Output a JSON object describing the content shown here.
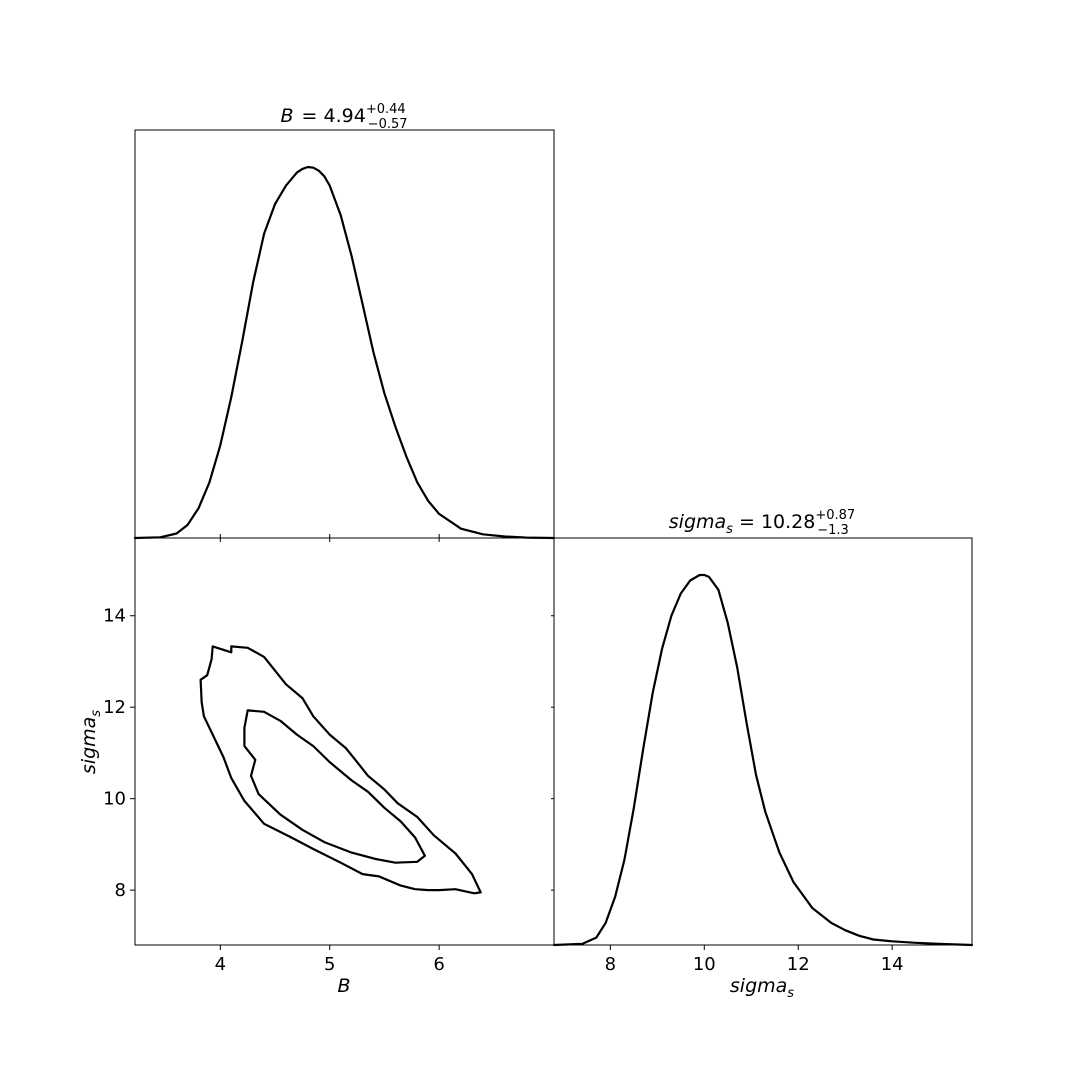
{
  "chart_data": [
    {
      "panel": "B-marginal",
      "type": "line",
      "title": {
        "param": "B",
        "value": "4.94",
        "plus": "+0.44",
        "minus": "−0.57"
      },
      "xlim": [
        3.22,
        7.05
      ],
      "x": [
        3.22,
        3.45,
        3.6,
        3.7,
        3.8,
        3.9,
        4.0,
        4.1,
        4.2,
        4.3,
        4.4,
        4.5,
        4.6,
        4.7,
        4.75,
        4.8,
        4.85,
        4.9,
        4.95,
        5.0,
        5.1,
        5.2,
        5.3,
        5.4,
        5.5,
        5.6,
        5.7,
        5.8,
        5.9,
        6.0,
        6.2,
        6.4,
        6.6,
        6.8,
        7.05
      ],
      "y": [
        0.0,
        0.002,
        0.012,
        0.035,
        0.08,
        0.15,
        0.25,
        0.38,
        0.53,
        0.69,
        0.82,
        0.9,
        0.95,
        0.985,
        0.995,
        1.0,
        0.998,
        0.99,
        0.975,
        0.95,
        0.87,
        0.76,
        0.63,
        0.5,
        0.39,
        0.3,
        0.22,
        0.15,
        0.1,
        0.065,
        0.025,
        0.01,
        0.004,
        0.001,
        0.0
      ]
    },
    {
      "panel": "sigma-marginal",
      "type": "line",
      "title": {
        "param": "sigma",
        "sub": "s",
        "value": "10.28",
        "plus": "+0.87",
        "minus": "−1.3"
      },
      "xlabel": {
        "main": "sigma",
        "sub": "s"
      },
      "xlim": [
        6.8,
        15.7
      ],
      "xticks": [
        8,
        10,
        12,
        14
      ],
      "x": [
        6.8,
        7.4,
        7.7,
        7.9,
        8.1,
        8.3,
        8.5,
        8.7,
        8.9,
        9.1,
        9.3,
        9.5,
        9.7,
        9.9,
        10.0,
        10.1,
        10.3,
        10.5,
        10.7,
        10.9,
        11.1,
        11.3,
        11.6,
        11.9,
        12.3,
        12.7,
        13.0,
        13.3,
        13.6,
        14.0,
        14.5,
        15.0,
        15.7
      ],
      "y": [
        0.0,
        0.003,
        0.02,
        0.06,
        0.13,
        0.23,
        0.37,
        0.53,
        0.68,
        0.8,
        0.89,
        0.95,
        0.985,
        1.0,
        1.0,
        0.995,
        0.96,
        0.87,
        0.75,
        0.6,
        0.46,
        0.36,
        0.25,
        0.17,
        0.1,
        0.06,
        0.04,
        0.025,
        0.015,
        0.01,
        0.006,
        0.003,
        0.0
      ]
    },
    {
      "panel": "joint",
      "type": "contour",
      "xlabel": {
        "main": "B"
      },
      "ylabel": {
        "main": "sigma",
        "sub": "s"
      },
      "xlim": [
        3.22,
        7.05
      ],
      "ylim": [
        6.8,
        15.7
      ],
      "xticks": [
        4,
        5,
        6
      ],
      "yticks": [
        8,
        10,
        12,
        14
      ],
      "contours": [
        {
          "level": "outer",
          "points": [
            [
              3.93,
              13.33
            ],
            [
              4.1,
              13.2
            ],
            [
              4.1,
              13.33
            ],
            [
              4.25,
              13.3
            ],
            [
              4.4,
              13.1
            ],
            [
              4.5,
              12.8
            ],
            [
              4.6,
              12.5
            ],
            [
              4.75,
              12.2
            ],
            [
              4.85,
              11.8
            ],
            [
              5.0,
              11.4
            ],
            [
              5.15,
              11.1
            ],
            [
              5.25,
              10.8
            ],
            [
              5.35,
              10.5
            ],
            [
              5.5,
              10.2
            ],
            [
              5.62,
              9.9
            ],
            [
              5.8,
              9.6
            ],
            [
              5.95,
              9.2
            ],
            [
              6.15,
              8.8
            ],
            [
              6.3,
              8.35
            ],
            [
              6.38,
              7.95
            ],
            [
              6.32,
              7.93
            ],
            [
              6.15,
              8.02
            ],
            [
              6.0,
              8.0
            ],
            [
              5.9,
              8.0
            ],
            [
              5.78,
              8.02
            ],
            [
              5.65,
              8.1
            ],
            [
              5.45,
              8.3
            ],
            [
              5.3,
              8.35
            ],
            [
              5.1,
              8.6
            ],
            [
              4.85,
              8.9
            ],
            [
              4.65,
              9.15
            ],
            [
              4.4,
              9.45
            ],
            [
              4.22,
              9.95
            ],
            [
              4.1,
              10.45
            ],
            [
              4.03,
              10.9
            ],
            [
              3.93,
              11.4
            ],
            [
              3.85,
              11.8
            ],
            [
              3.83,
              12.1
            ],
            [
              3.82,
              12.6
            ],
            [
              3.88,
              12.7
            ],
            [
              3.92,
              13.05
            ],
            [
              3.93,
              13.33
            ]
          ]
        },
        {
          "level": "inner",
          "points": [
            [
              4.25,
              11.93
            ],
            [
              4.4,
              11.9
            ],
            [
              4.55,
              11.7
            ],
            [
              4.7,
              11.4
            ],
            [
              4.85,
              11.15
            ],
            [
              5.0,
              10.8
            ],
            [
              5.2,
              10.4
            ],
            [
              5.35,
              10.15
            ],
            [
              5.5,
              9.8
            ],
            [
              5.65,
              9.5
            ],
            [
              5.78,
              9.15
            ],
            [
              5.87,
              8.75
            ],
            [
              5.8,
              8.62
            ],
            [
              5.6,
              8.6
            ],
            [
              5.42,
              8.68
            ],
            [
              5.2,
              8.82
            ],
            [
              4.95,
              9.05
            ],
            [
              4.75,
              9.32
            ],
            [
              4.55,
              9.65
            ],
            [
              4.35,
              10.1
            ],
            [
              4.28,
              10.5
            ],
            [
              4.32,
              10.85
            ],
            [
              4.22,
              11.15
            ],
            [
              4.22,
              11.55
            ],
            [
              4.25,
              11.93
            ]
          ]
        }
      ]
    }
  ]
}
